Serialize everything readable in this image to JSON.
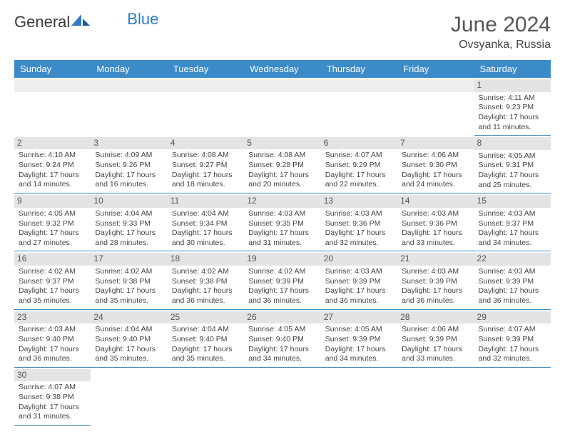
{
  "logo": {
    "word1": "General",
    "word2": "Blue"
  },
  "title": "June 2024",
  "location": "Ovsyanka, Russia",
  "colors": {
    "header_bg": "#3b8bc9",
    "header_text": "#ffffff",
    "cell_border": "#3b8bc9",
    "daynum_bg": "#e4e4e4",
    "logo_accent": "#2f7dc4"
  },
  "weekdays": [
    "Sunday",
    "Monday",
    "Tuesday",
    "Wednesday",
    "Thursday",
    "Friday",
    "Saturday"
  ],
  "weeks": [
    [
      {
        "empty": true
      },
      {
        "empty": true
      },
      {
        "empty": true
      },
      {
        "empty": true
      },
      {
        "empty": true
      },
      {
        "empty": true
      },
      {
        "day": "1",
        "sunrise": "Sunrise: 4:11 AM",
        "sunset": "Sunset: 9:23 PM",
        "daylight": "Daylight: 17 hours and 11 minutes."
      }
    ],
    [
      {
        "day": "2",
        "sunrise": "Sunrise: 4:10 AM",
        "sunset": "Sunset: 9:24 PM",
        "daylight": "Daylight: 17 hours and 14 minutes."
      },
      {
        "day": "3",
        "sunrise": "Sunrise: 4:09 AM",
        "sunset": "Sunset: 9:26 PM",
        "daylight": "Daylight: 17 hours and 16 minutes."
      },
      {
        "day": "4",
        "sunrise": "Sunrise: 4:08 AM",
        "sunset": "Sunset: 9:27 PM",
        "daylight": "Daylight: 17 hours and 18 minutes."
      },
      {
        "day": "5",
        "sunrise": "Sunrise: 4:08 AM",
        "sunset": "Sunset: 9:28 PM",
        "daylight": "Daylight: 17 hours and 20 minutes."
      },
      {
        "day": "6",
        "sunrise": "Sunrise: 4:07 AM",
        "sunset": "Sunset: 9:29 PM",
        "daylight": "Daylight: 17 hours and 22 minutes."
      },
      {
        "day": "7",
        "sunrise": "Sunrise: 4:06 AM",
        "sunset": "Sunset: 9:30 PM",
        "daylight": "Daylight: 17 hours and 24 minutes."
      },
      {
        "day": "8",
        "sunrise": "Sunrise: 4:05 AM",
        "sunset": "Sunset: 9:31 PM",
        "daylight": "Daylight: 17 hours and 25 minutes."
      }
    ],
    [
      {
        "day": "9",
        "sunrise": "Sunrise: 4:05 AM",
        "sunset": "Sunset: 9:32 PM",
        "daylight": "Daylight: 17 hours and 27 minutes."
      },
      {
        "day": "10",
        "sunrise": "Sunrise: 4:04 AM",
        "sunset": "Sunset: 9:33 PM",
        "daylight": "Daylight: 17 hours and 28 minutes."
      },
      {
        "day": "11",
        "sunrise": "Sunrise: 4:04 AM",
        "sunset": "Sunset: 9:34 PM",
        "daylight": "Daylight: 17 hours and 30 minutes."
      },
      {
        "day": "12",
        "sunrise": "Sunrise: 4:03 AM",
        "sunset": "Sunset: 9:35 PM",
        "daylight": "Daylight: 17 hours and 31 minutes."
      },
      {
        "day": "13",
        "sunrise": "Sunrise: 4:03 AM",
        "sunset": "Sunset: 9:36 PM",
        "daylight": "Daylight: 17 hours and 32 minutes."
      },
      {
        "day": "14",
        "sunrise": "Sunrise: 4:03 AM",
        "sunset": "Sunset: 9:36 PM",
        "daylight": "Daylight: 17 hours and 33 minutes."
      },
      {
        "day": "15",
        "sunrise": "Sunrise: 4:03 AM",
        "sunset": "Sunset: 9:37 PM",
        "daylight": "Daylight: 17 hours and 34 minutes."
      }
    ],
    [
      {
        "day": "16",
        "sunrise": "Sunrise: 4:02 AM",
        "sunset": "Sunset: 9:37 PM",
        "daylight": "Daylight: 17 hours and 35 minutes."
      },
      {
        "day": "17",
        "sunrise": "Sunrise: 4:02 AM",
        "sunset": "Sunset: 9:38 PM",
        "daylight": "Daylight: 17 hours and 35 minutes."
      },
      {
        "day": "18",
        "sunrise": "Sunrise: 4:02 AM",
        "sunset": "Sunset: 9:38 PM",
        "daylight": "Daylight: 17 hours and 36 minutes."
      },
      {
        "day": "19",
        "sunrise": "Sunrise: 4:02 AM",
        "sunset": "Sunset: 9:39 PM",
        "daylight": "Daylight: 17 hours and 36 minutes."
      },
      {
        "day": "20",
        "sunrise": "Sunrise: 4:03 AM",
        "sunset": "Sunset: 9:39 PM",
        "daylight": "Daylight: 17 hours and 36 minutes."
      },
      {
        "day": "21",
        "sunrise": "Sunrise: 4:03 AM",
        "sunset": "Sunset: 9:39 PM",
        "daylight": "Daylight: 17 hours and 36 minutes."
      },
      {
        "day": "22",
        "sunrise": "Sunrise: 4:03 AM",
        "sunset": "Sunset: 9:39 PM",
        "daylight": "Daylight: 17 hours and 36 minutes."
      }
    ],
    [
      {
        "day": "23",
        "sunrise": "Sunrise: 4:03 AM",
        "sunset": "Sunset: 9:40 PM",
        "daylight": "Daylight: 17 hours and 36 minutes."
      },
      {
        "day": "24",
        "sunrise": "Sunrise: 4:04 AM",
        "sunset": "Sunset: 9:40 PM",
        "daylight": "Daylight: 17 hours and 35 minutes."
      },
      {
        "day": "25",
        "sunrise": "Sunrise: 4:04 AM",
        "sunset": "Sunset: 9:40 PM",
        "daylight": "Daylight: 17 hours and 35 minutes."
      },
      {
        "day": "26",
        "sunrise": "Sunrise: 4:05 AM",
        "sunset": "Sunset: 9:40 PM",
        "daylight": "Daylight: 17 hours and 34 minutes."
      },
      {
        "day": "27",
        "sunrise": "Sunrise: 4:05 AM",
        "sunset": "Sunset: 9:39 PM",
        "daylight": "Daylight: 17 hours and 34 minutes."
      },
      {
        "day": "28",
        "sunrise": "Sunrise: 4:06 AM",
        "sunset": "Sunset: 9:39 PM",
        "daylight": "Daylight: 17 hours and 33 minutes."
      },
      {
        "day": "29",
        "sunrise": "Sunrise: 4:07 AM",
        "sunset": "Sunset: 9:39 PM",
        "daylight": "Daylight: 17 hours and 32 minutes."
      }
    ],
    [
      {
        "day": "30",
        "sunrise": "Sunrise: 4:07 AM",
        "sunset": "Sunset: 9:38 PM",
        "daylight": "Daylight: 17 hours and 31 minutes."
      },
      {
        "trailing": true
      },
      {
        "trailing": true
      },
      {
        "trailing": true
      },
      {
        "trailing": true
      },
      {
        "trailing": true
      },
      {
        "trailing": true
      }
    ]
  ]
}
